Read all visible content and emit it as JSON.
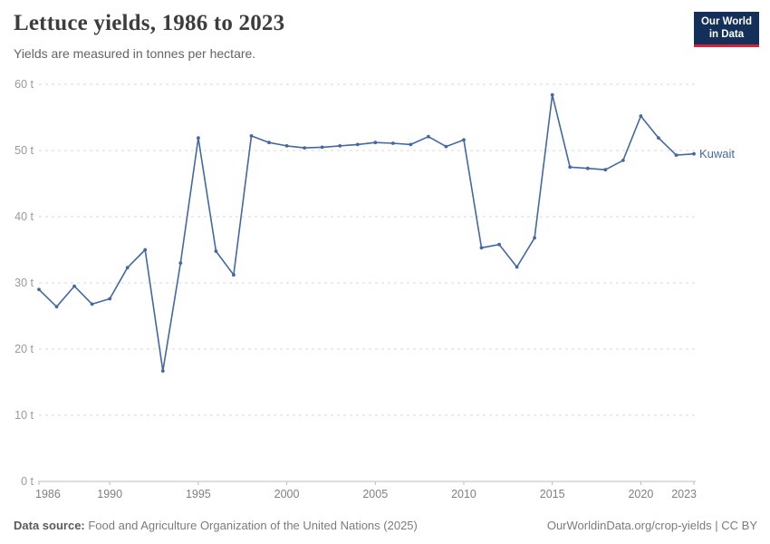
{
  "header": {
    "title": "Lettuce yields, 1986 to 2023",
    "subtitle": "Yields are measured in tonnes per hectare.",
    "logo": {
      "line1": "Our World",
      "line2": "in Data",
      "bg_color": "#14305a",
      "accent_color": "#d0243c"
    }
  },
  "chart_data": {
    "type": "line",
    "title": "Lettuce yields, 1986 to 2023",
    "subtitle": "Yields are measured in tonnes per hectare.",
    "unit": "t",
    "grid": "horizontal-dashed",
    "legend_position": "end-of-line",
    "xlim": [
      1986,
      2023
    ],
    "ylim": [
      0,
      60
    ],
    "yticks": [
      0,
      10,
      20,
      30,
      40,
      50,
      60
    ],
    "ytick_suffix": " t",
    "xticks": [
      1986,
      1990,
      1995,
      2000,
      2005,
      2010,
      2015,
      2020,
      2023
    ],
    "x": [
      1986,
      1987,
      1988,
      1989,
      1990,
      1991,
      1992,
      1993,
      1994,
      1995,
      1996,
      1997,
      1998,
      1999,
      2000,
      2001,
      2002,
      2003,
      2004,
      2005,
      2006,
      2007,
      2008,
      2009,
      2010,
      2011,
      2012,
      2013,
      2014,
      2015,
      2016,
      2017,
      2018,
      2019,
      2020,
      2021,
      2022,
      2023
    ],
    "series": [
      {
        "name": "Kuwait",
        "color": "#4467a5",
        "values": [
          29.0,
          26.4,
          29.5,
          26.8,
          27.6,
          32.3,
          35.0,
          16.7,
          33.0,
          51.9,
          34.8,
          31.2,
          52.2,
          51.2,
          50.7,
          50.4,
          50.5,
          50.7,
          50.9,
          51.2,
          51.1,
          50.9,
          52.1,
          50.6,
          51.6,
          35.3,
          35.8,
          32.4,
          36.8,
          58.4,
          47.5,
          47.3,
          47.1,
          48.5,
          55.2,
          51.9,
          49.3,
          49.5
        ]
      }
    ]
  },
  "footer": {
    "source_label": "Data source:",
    "source_text": " Food and Agriculture Organization of the United Nations (2025)",
    "link_text": "OurWorldinData.org/crop-yields | CC BY"
  }
}
